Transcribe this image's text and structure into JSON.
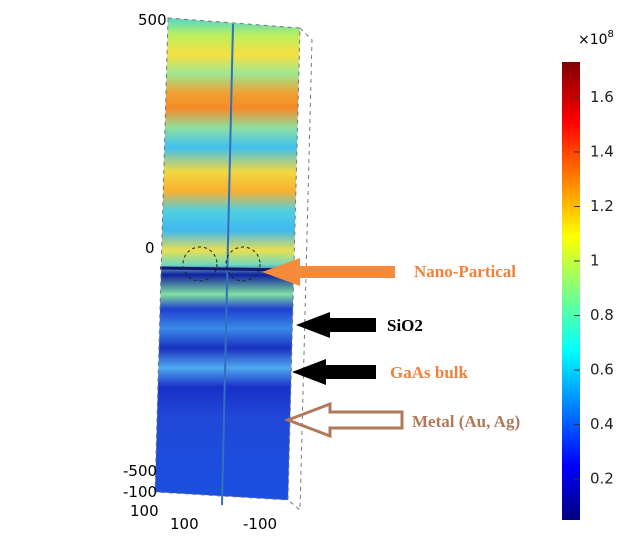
{
  "axis_labels": {
    "z_top": "500",
    "z_mid": "0",
    "z_bottom": "-500",
    "y_near": "-100",
    "y_far": "100",
    "x_left": "100",
    "x_right": "-100"
  },
  "annotations": [
    "Nano-Partical",
    "SiO2",
    "GaAs bulk",
    "Metal (Au, Ag)"
  ],
  "colorbar": {
    "multiplier": {
      "base": "×10",
      "exponent": "8"
    },
    "range": [
      0.05,
      1.73
    ],
    "ticks": [
      1.6,
      1.4,
      1.2,
      1,
      0.8,
      0.6,
      0.4,
      0.2
    ]
  }
}
